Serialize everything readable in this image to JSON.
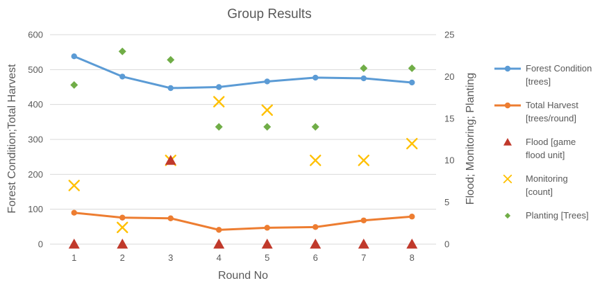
{
  "chart_data": {
    "type": "line",
    "title": "Group Results",
    "xlabel": "Round No",
    "ylabel_left": "Forest Condition;Total  Harvest",
    "ylabel_right": "Flood; Monitoring; Planting",
    "x": [
      1,
      2,
      3,
      4,
      5,
      6,
      7,
      8
    ],
    "ylim_left": [
      0,
      600
    ],
    "ylim_right": [
      0,
      25
    ],
    "yticks_left": [
      0,
      100,
      200,
      300,
      400,
      500,
      600
    ],
    "yticks_right": [
      0,
      5,
      10,
      15,
      20,
      25
    ],
    "grid": true,
    "legend_position": "right",
    "series": [
      {
        "name": "Forest Condition [trees]",
        "legend_lines": [
          "Forest Condition",
          "[trees]"
        ],
        "axis": "left",
        "style": "line-marker",
        "marker": "circle",
        "color": "#5b9bd5",
        "values": [
          538,
          480,
          447,
          450,
          466,
          477,
          475,
          463
        ]
      },
      {
        "name": "Total Harvest [trees/round]",
        "legend_lines": [
          "Total Harvest",
          "[trees/round]"
        ],
        "axis": "left",
        "style": "line-marker",
        "marker": "circle",
        "color": "#ed7d31",
        "values": [
          90,
          76,
          74,
          41,
          47,
          49,
          68,
          79
        ]
      },
      {
        "name": "Flood [game flood unit]",
        "legend_lines": [
          "Flood [game",
          "flood unit]"
        ],
        "axis": "right",
        "style": "scatter",
        "marker": "triangle",
        "color": "#c0392b",
        "values": [
          0,
          0,
          10,
          0,
          0,
          0,
          0,
          0
        ]
      },
      {
        "name": "Monitoring [count]",
        "legend_lines": [
          "Monitoring",
          "[count]"
        ],
        "axis": "right",
        "style": "scatter",
        "marker": "x",
        "color": "#ffc000",
        "values": [
          7,
          2,
          10,
          17,
          16,
          10,
          10,
          12
        ]
      },
      {
        "name": "Planting [Trees]",
        "legend_lines": [
          "Planting [Trees]"
        ],
        "axis": "right",
        "style": "scatter",
        "marker": "diamond",
        "color": "#70ad47",
        "values": [
          19,
          23,
          22,
          14,
          14,
          14,
          21,
          21
        ]
      }
    ]
  }
}
